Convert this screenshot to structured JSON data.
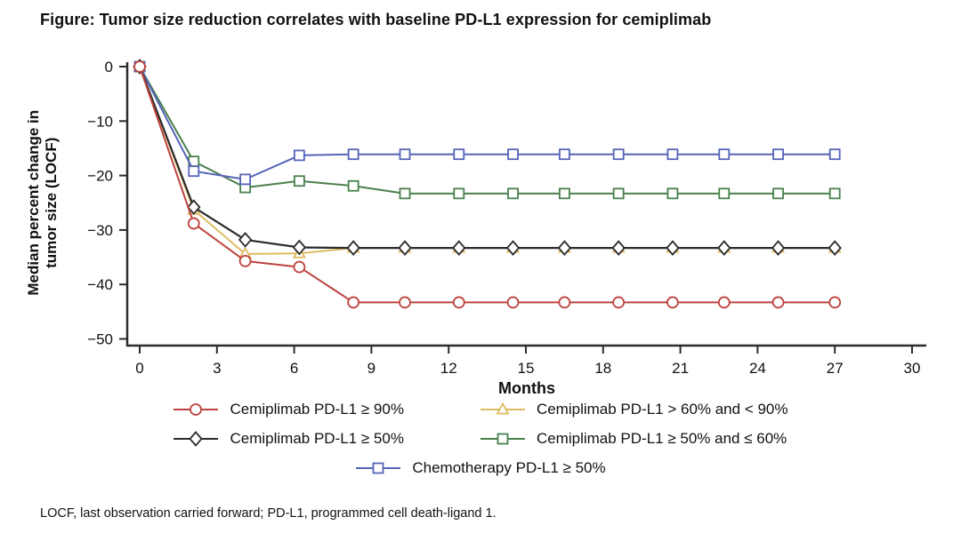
{
  "title": "Figure: Tumor size reduction correlates with baseline PD-L1 expression for cemiplimab",
  "footnote": "LOCF, last observation carried forward; PD-L1, programmed cell death-ligand 1.",
  "chart_data": {
    "type": "line",
    "title": "Figure: Tumor size reduction correlates with baseline PD-L1 expression for cemiplimab",
    "xlabel": "Months",
    "ylabel": "Median percent change in tumor size (LOCF)",
    "ylabel_lines": [
      "Median percent change in",
      "tumor size (LOCF)"
    ],
    "xlim": [
      0,
      30
    ],
    "ylim": [
      -50,
      0
    ],
    "xticks": [
      0,
      3,
      6,
      9,
      12,
      15,
      18,
      21,
      24,
      27,
      30
    ],
    "xtick_labels": [
      "0",
      "3",
      "6",
      "9",
      "12",
      "15",
      "18",
      "21",
      "24",
      "27",
      "30"
    ],
    "yticks": [
      0,
      -10,
      -20,
      -30,
      -40,
      -50
    ],
    "ytick_labels": [
      "0",
      "−10",
      "−20",
      "−30",
      "−40",
      "−50"
    ],
    "grid": false,
    "legend_position": "bottom",
    "x": [
      0,
      2.1,
      4.1,
      6.2,
      8.3,
      10.3,
      12.4,
      14.5,
      16.5,
      18.6,
      20.7,
      22.7,
      24.8,
      27
    ],
    "series": [
      {
        "name": "Cemiplimab PD-L1 ≥ 90%",
        "marker": "circle",
        "color": "#bd433e",
        "values": [
          0,
          -28.8,
          -35.7,
          -36.8,
          -43.3,
          -43.3,
          -43.3,
          -43.3,
          -43.3,
          -43.3,
          -43.3,
          -43.3,
          -43.3,
          -43.3
        ]
      },
      {
        "name": "Cemiplimab PD-L1 > 60% and < 90%",
        "marker": "triangle",
        "color": "#debb63",
        "values": [
          0,
          -26.3,
          -34.4,
          -34.3,
          -33.3,
          -33.3,
          -33.3,
          -33.3,
          -33.3,
          -33.3,
          -33.3,
          -33.3,
          -33.3,
          -33.3
        ]
      },
      {
        "name": "Cemiplimab PD-L1 ≥ 50%",
        "marker": "diamond",
        "color": "#2b2b2b",
        "values": [
          0,
          -25.8,
          -31.8,
          -33.2,
          -33.3,
          -33.3,
          -33.3,
          -33.3,
          -33.3,
          -33.3,
          -33.3,
          -33.3,
          -33.3,
          -33.3
        ]
      },
      {
        "name": "Cemiplimab PD-L1 ≥ 50% and ≤ 60%",
        "marker": "square",
        "color": "#49804d",
        "values": [
          0,
          -17.4,
          -22.2,
          -21.0,
          -21.9,
          -23.3,
          -23.3,
          -23.3,
          -23.3,
          -23.3,
          -23.3,
          -23.3,
          -23.3,
          -23.3
        ]
      },
      {
        "name": "Chemotherapy PD-L1 ≥ 50%",
        "marker": "square",
        "color": "#5564b8",
        "values": [
          0,
          -19.2,
          -20.7,
          -16.3,
          -16.1,
          -16.1,
          -16.1,
          -16.1,
          -16.1,
          -16.1,
          -16.1,
          -16.1,
          -16.1,
          -16.1
        ]
      }
    ],
    "draw_order": [
      1,
      3,
      4,
      2,
      0
    ]
  }
}
